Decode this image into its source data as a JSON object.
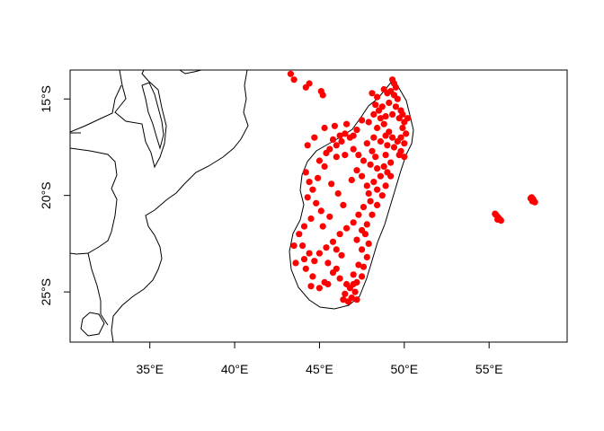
{
  "chart_data": {
    "type": "scatter",
    "projection": "lon-lat",
    "xlim": [
      30.3,
      59.6
    ],
    "ylim": [
      -27.6,
      -13.5
    ],
    "x_ticks": [
      {
        "value": 35,
        "label": "35°E"
      },
      {
        "value": 40,
        "label": "40°E"
      },
      {
        "value": 45,
        "label": "45°E"
      },
      {
        "value": 50,
        "label": "50°E"
      },
      {
        "value": 55,
        "label": "55°E"
      }
    ],
    "y_ticks": [
      {
        "value": -15,
        "label": "15°S"
      },
      {
        "value": -20,
        "label": "20°S"
      },
      {
        "value": -25,
        "label": "25°S"
      }
    ],
    "grid": false,
    "legend": "none",
    "point_color": "#ff0000",
    "border_color": "#000000",
    "points": [
      [
        43.3,
        -13.7
      ],
      [
        43.5,
        -14.0
      ],
      [
        44.4,
        -14.2
      ],
      [
        44.2,
        -14.4
      ],
      [
        45.2,
        -14.8
      ],
      [
        45.1,
        -14.6
      ],
      [
        49.3,
        -14.0
      ],
      [
        49.4,
        -14.2
      ],
      [
        49.5,
        -14.4
      ],
      [
        49.2,
        -14.6
      ],
      [
        49.4,
        -14.8
      ],
      [
        49.6,
        -15.0
      ],
      [
        49.1,
        -15.2
      ],
      [
        49.5,
        -15.4
      ],
      [
        49.8,
        -15.6
      ],
      [
        49.3,
        -15.8
      ],
      [
        48.9,
        -15.9
      ],
      [
        49.7,
        -16.0
      ],
      [
        50.0,
        -16.2
      ],
      [
        49.9,
        -16.5
      ],
      [
        50.1,
        -16.8
      ],
      [
        49.8,
        -17.0
      ],
      [
        50.0,
        -17.3
      ],
      [
        49.6,
        -17.2
      ],
      [
        49.4,
        -17.5
      ],
      [
        49.8,
        -17.7
      ],
      [
        50.0,
        -18.0
      ],
      [
        49.7,
        -17.9
      ],
      [
        48.3,
        -15.3
      ],
      [
        48.5,
        -15.6
      ],
      [
        48.7,
        -15.4
      ],
      [
        48.2,
        -15.8
      ],
      [
        48.6,
        -16.0
      ],
      [
        47.9,
        -16.2
      ],
      [
        48.4,
        -16.5
      ],
      [
        48.8,
        -16.3
      ],
      [
        49.1,
        -16.7
      ],
      [
        49.3,
        -17.0
      ],
      [
        49.0,
        -17.4
      ],
      [
        48.6,
        -17.2
      ],
      [
        48.2,
        -17.0
      ],
      [
        47.8,
        -17.3
      ],
      [
        46.5,
        -16.8
      ],
      [
        46.8,
        -17.0
      ],
      [
        46.3,
        -17.2
      ],
      [
        46.0,
        -17.4
      ],
      [
        45.6,
        -17.6
      ],
      [
        45.8,
        -17.1
      ],
      [
        46.2,
        -16.9
      ],
      [
        45.4,
        -17.8
      ],
      [
        45.0,
        -18.2
      ],
      [
        45.3,
        -18.5
      ],
      [
        46.0,
        -18.0
      ],
      [
        46.5,
        -17.9
      ],
      [
        47.0,
        -17.6
      ],
      [
        47.3,
        -17.9
      ],
      [
        47.6,
        -18.2
      ],
      [
        48.0,
        -18.4
      ],
      [
        48.4,
        -18.6
      ],
      [
        48.8,
        -18.5
      ],
      [
        49.2,
        -18.3
      ],
      [
        49.0,
        -18.8
      ],
      [
        48.6,
        -19.0
      ],
      [
        48.2,
        -19.3
      ],
      [
        47.8,
        -19.5
      ],
      [
        47.5,
        -19.0
      ],
      [
        47.2,
        -18.7
      ],
      [
        44.2,
        -18.8
      ],
      [
        44.4,
        -19.3
      ],
      [
        44.6,
        -19.7
      ],
      [
        44.3,
        -20.1
      ],
      [
        44.8,
        -20.4
      ],
      [
        45.1,
        -20.8
      ],
      [
        44.5,
        -21.2
      ],
      [
        44.1,
        -21.6
      ],
      [
        43.8,
        -22.0
      ],
      [
        44.0,
        -22.6
      ],
      [
        44.4,
        -23.0
      ],
      [
        44.7,
        -23.4
      ],
      [
        45.0,
        -23.0
      ],
      [
        45.4,
        -22.7
      ],
      [
        45.8,
        -22.4
      ],
      [
        46.2,
        -22.0
      ],
      [
        46.6,
        -21.7
      ],
      [
        47.0,
        -21.4
      ],
      [
        47.3,
        -21.0
      ],
      [
        47.6,
        -20.6
      ],
      [
        48.0,
        -20.3
      ],
      [
        47.5,
        -21.8
      ],
      [
        47.2,
        -22.3
      ],
      [
        47.5,
        -22.8
      ],
      [
        47.8,
        -23.2
      ],
      [
        47.3,
        -23.6
      ],
      [
        47.0,
        -24.1
      ],
      [
        47.2,
        -24.5
      ],
      [
        46.8,
        -24.8
      ],
      [
        46.5,
        -25.1
      ],
      [
        46.9,
        -25.3
      ],
      [
        47.1,
        -25.0
      ],
      [
        46.6,
        -24.6
      ],
      [
        46.2,
        -24.3
      ],
      [
        45.8,
        -24.0
      ],
      [
        45.3,
        -24.5
      ],
      [
        45.0,
        -24.8
      ],
      [
        44.6,
        -24.2
      ],
      [
        44.2,
        -23.8
      ],
      [
        43.6,
        -23.5
      ],
      [
        43.5,
        -22.6
      ],
      [
        44.9,
        -19.1
      ],
      [
        45.7,
        -19.4
      ],
      [
        46.1,
        -19.9
      ],
      [
        46.4,
        -20.5
      ],
      [
        45.6,
        -21.1
      ],
      [
        45.2,
        -21.6
      ],
      [
        46.9,
        -19.2
      ],
      [
        47.9,
        -19.9
      ],
      [
        48.4,
        -19.7
      ],
      [
        48.7,
        -20.0
      ],
      [
        47.7,
        -22.0
      ],
      [
        46.3,
        -23.1
      ],
      [
        45.5,
        -23.5
      ],
      [
        46.0,
        -22.8
      ],
      [
        44.3,
        -17.4
      ],
      [
        44.7,
        -17.0
      ],
      [
        45.3,
        -16.5
      ],
      [
        45.9,
        -16.4
      ],
      [
        46.6,
        -16.3
      ],
      [
        47.2,
        -16.6
      ],
      [
        47.5,
        -16.1
      ],
      [
        47.0,
        -16.9
      ],
      [
        48.1,
        -17.7
      ],
      [
        48.9,
        -17.9
      ],
      [
        49.2,
        -19.0
      ],
      [
        48.9,
        -19.5
      ],
      [
        48.4,
        -20.5
      ],
      [
        48.1,
        -21.0
      ],
      [
        47.8,
        -21.5
      ],
      [
        47.9,
        -22.5
      ],
      [
        47.6,
        -23.7
      ],
      [
        47.5,
        -24.2
      ],
      [
        47.0,
        -24.6
      ],
      [
        46.4,
        -25.4
      ],
      [
        46.7,
        -25.5
      ],
      [
        47.2,
        -25.4
      ],
      [
        46.0,
        -23.8
      ],
      [
        45.5,
        -24.6
      ],
      [
        44.5,
        -24.7
      ],
      [
        44.1,
        -23.3
      ],
      [
        48.1,
        -14.7
      ],
      [
        48.4,
        -14.9
      ],
      [
        48.8,
        -14.5
      ],
      [
        49.0,
        -14.7
      ],
      [
        50.2,
        -16.0
      ],
      [
        49.9,
        -15.8
      ],
      [
        48.9,
        -16.9
      ],
      [
        48.3,
        -18.0
      ],
      [
        55.4,
        -21.0
      ],
      [
        55.5,
        -21.1
      ],
      [
        55.6,
        -21.2
      ],
      [
        55.7,
        -21.3
      ],
      [
        55.5,
        -21.25
      ],
      [
        55.35,
        -20.95
      ],
      [
        57.5,
        -20.1
      ],
      [
        57.6,
        -20.2
      ],
      [
        57.7,
        -20.35
      ],
      [
        57.55,
        -20.3
      ],
      [
        57.45,
        -20.15
      ]
    ]
  }
}
